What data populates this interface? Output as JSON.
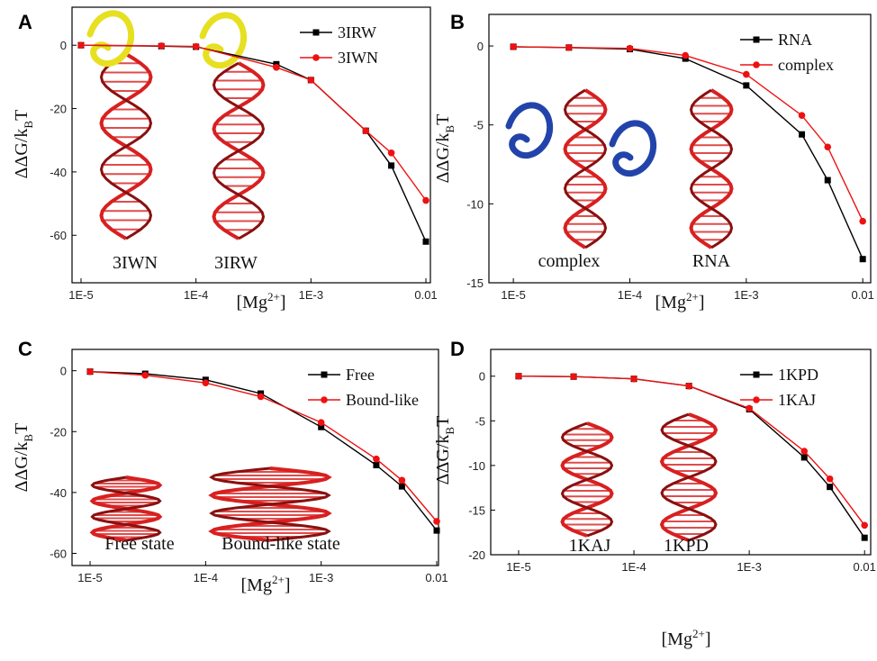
{
  "chart_data": [
    {
      "type": "line",
      "panel": "A",
      "xscale": "log",
      "legend": "upper right",
      "x": [
        1e-05,
        5e-05,
        0.0001,
        0.0005,
        0.001,
        0.003,
        0.005,
        0.01
      ],
      "series": [
        {
          "name": "3IRW",
          "color": "#000000",
          "marker": "square",
          "values": [
            0,
            -0.3,
            -0.5,
            -6,
            -11,
            -27,
            -38,
            -62
          ]
        },
        {
          "name": "3IWN",
          "color": "#ee1111",
          "marker": "circle",
          "values": [
            0,
            -0.2,
            -0.4,
            -7,
            -11,
            -27,
            -34,
            -49
          ]
        }
      ],
      "xlim": [
        8.35e-06,
        0.01094
      ],
      "ylim": [
        -75,
        12
      ],
      "xticks": [
        {
          "value": 1e-05,
          "label": "1E-5"
        },
        {
          "value": 0.0001,
          "label": "1E-4"
        },
        {
          "value": 0.001,
          "label": "1E-3"
        },
        0.01
      ],
      "yticks": [
        0,
        -20,
        -40,
        -60
      ],
      "xlabel": [
        "[Mg",
        "2+",
        "]"
      ],
      "ylabel": [
        "ΔΔG/k",
        "B",
        "T"
      ],
      "annotations": [
        "3IWN",
        "3IRW"
      ]
    },
    {
      "type": "line",
      "panel": "B",
      "xscale": "log",
      "legend": "upper right",
      "x": [
        1e-05,
        3e-05,
        0.0001,
        0.0003,
        0.001,
        0.003,
        0.005,
        0.01
      ],
      "series": [
        {
          "name": "RNA",
          "color": "#000000",
          "marker": "square",
          "values": [
            -0.05,
            -0.1,
            -0.2,
            -0.8,
            -2.5,
            -5.6,
            -8.5,
            -13.5
          ]
        },
        {
          "name": "complex",
          "color": "#ee1111",
          "marker": "circle",
          "values": [
            -0.05,
            -0.1,
            -0.15,
            -0.6,
            -1.8,
            -4.4,
            -6.4,
            -11.1
          ]
        }
      ],
      "xlim": [
        6.17e-06,
        0.0117
      ],
      "ylim": [
        -15,
        2
      ],
      "xticks": [
        {
          "value": 1e-05,
          "label": "1E-5"
        },
        {
          "value": 0.0001,
          "label": "1E-4"
        },
        {
          "value": 0.001,
          "label": "1E-3"
        },
        0.01
      ],
      "yticks": [
        0,
        -5,
        -10,
        -15
      ],
      "xlabel": [
        "[Mg",
        "2+",
        "]"
      ],
      "ylabel": [
        "ΔΔG/k",
        "B",
        "T"
      ],
      "annotations": [
        "complex",
        "RNA"
      ]
    },
    {
      "type": "line",
      "panel": "C",
      "xscale": "log",
      "legend": "upper right",
      "x": [
        1e-05,
        3e-05,
        0.0001,
        0.0003,
        0.001,
        0.003,
        0.005,
        0.01
      ],
      "series": [
        {
          "name": "Free",
          "color": "#000000",
          "marker": "square",
          "values": [
            -0.3,
            -1,
            -3,
            -7.5,
            -18.5,
            -31,
            -38,
            -52.5
          ]
        },
        {
          "name": "Bound-like",
          "color": "#ee1111",
          "marker": "circle",
          "values": [
            -0.3,
            -1.5,
            -4,
            -8.5,
            -17,
            -29,
            -36,
            -49.5
          ]
        }
      ],
      "xlim": [
        6.98e-06,
        0.01036
      ],
      "ylim": [
        -64,
        7
      ],
      "xticks": [
        {
          "value": 1e-05,
          "label": "1E-5"
        },
        {
          "value": 0.0001,
          "label": "1E-4"
        },
        {
          "value": 0.001,
          "label": "1E-3"
        },
        0.01
      ],
      "yticks": [
        0,
        -20,
        -40,
        -60
      ],
      "xlabel": [
        "[Mg",
        "2+",
        "]"
      ],
      "ylabel": [
        "ΔΔG/k",
        "B",
        "T"
      ],
      "annotations": [
        "Free state",
        "Bound-like state"
      ]
    },
    {
      "type": "line",
      "panel": "D",
      "xscale": "log",
      "legend": "upper right",
      "x": [
        1e-05,
        3e-05,
        0.0001,
        0.0003,
        0.001,
        0.003,
        0.005,
        0.01
      ],
      "series": [
        {
          "name": "1KPD",
          "color": "#000000",
          "marker": "square",
          "values": [
            0,
            -0.05,
            -0.3,
            -1.1,
            -3.7,
            -9.1,
            -12.4,
            -18.1
          ]
        },
        {
          "name": "1KAJ",
          "color": "#ee1111",
          "marker": "circle",
          "values": [
            0,
            -0.05,
            -0.3,
            -1.1,
            -3.6,
            -8.4,
            -11.5,
            -16.7
          ]
        }
      ],
      "xlim": [
        5.73e-06,
        0.0113
      ],
      "ylim": [
        -20,
        3
      ],
      "xticks": [
        {
          "value": 1e-05,
          "label": "1E-5"
        },
        {
          "value": 0.0001,
          "label": "1E-4"
        },
        {
          "value": 0.001,
          "label": "1E-3"
        },
        0.01
      ],
      "yticks": [
        0,
        -5,
        -10,
        -15,
        -20
      ],
      "xlabel": [
        "[Mg",
        "2+",
        "]"
      ],
      "ylabel": [
        "ΔΔG/k",
        "B",
        "T"
      ],
      "annotations": [
        "1KAJ",
        "1KPD"
      ]
    }
  ]
}
